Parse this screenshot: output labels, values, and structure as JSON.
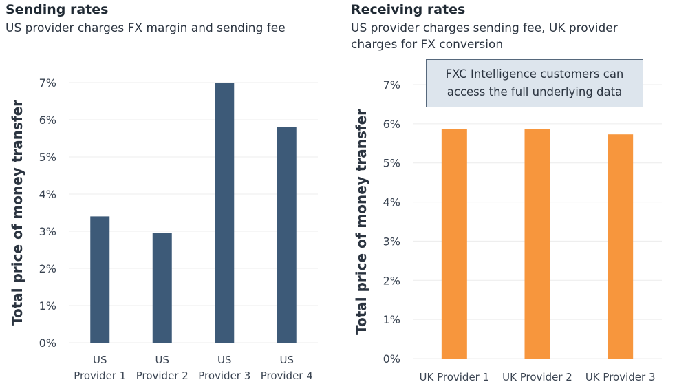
{
  "chart_data": [
    {
      "type": "bar",
      "title": "Sending rates",
      "subtitle": "US provider charges FX margin and sending fee",
      "ylabel": "Total price of money transfer",
      "xlabel": "",
      "categories": [
        [
          "US",
          "Provider 1"
        ],
        [
          "US",
          "Provider 2"
        ],
        [
          "US",
          "Provider 3"
        ],
        [
          "US",
          "Provider 4"
        ]
      ],
      "values": [
        3.4,
        2.95,
        7.0,
        5.8
      ],
      "ylim": [
        0,
        7
      ],
      "yticks": [
        "0%",
        "1%",
        "2%",
        "3%",
        "4%",
        "5%",
        "6%",
        "7%"
      ],
      "grid": true,
      "color": "#3d5a78"
    },
    {
      "type": "bar",
      "title": "Receiving rates",
      "subtitle": "US provider charges sending fee, UK provider charges for FX conversion",
      "ylabel": "Total price of money transfer",
      "xlabel": "",
      "categories": [
        [
          "UK Provider 1"
        ],
        [
          "UK Provider 2"
        ],
        [
          "UK Provider 3"
        ]
      ],
      "values": [
        5.87,
        5.87,
        5.73
      ],
      "ylim": [
        0,
        7
      ],
      "yticks": [
        "0%",
        "1%",
        "2%",
        "3%",
        "4%",
        "5%",
        "6%",
        "7%"
      ],
      "grid": true,
      "color": "#f7963d",
      "annotation": "FXC Intelligence customers can access the full underlying data"
    }
  ]
}
